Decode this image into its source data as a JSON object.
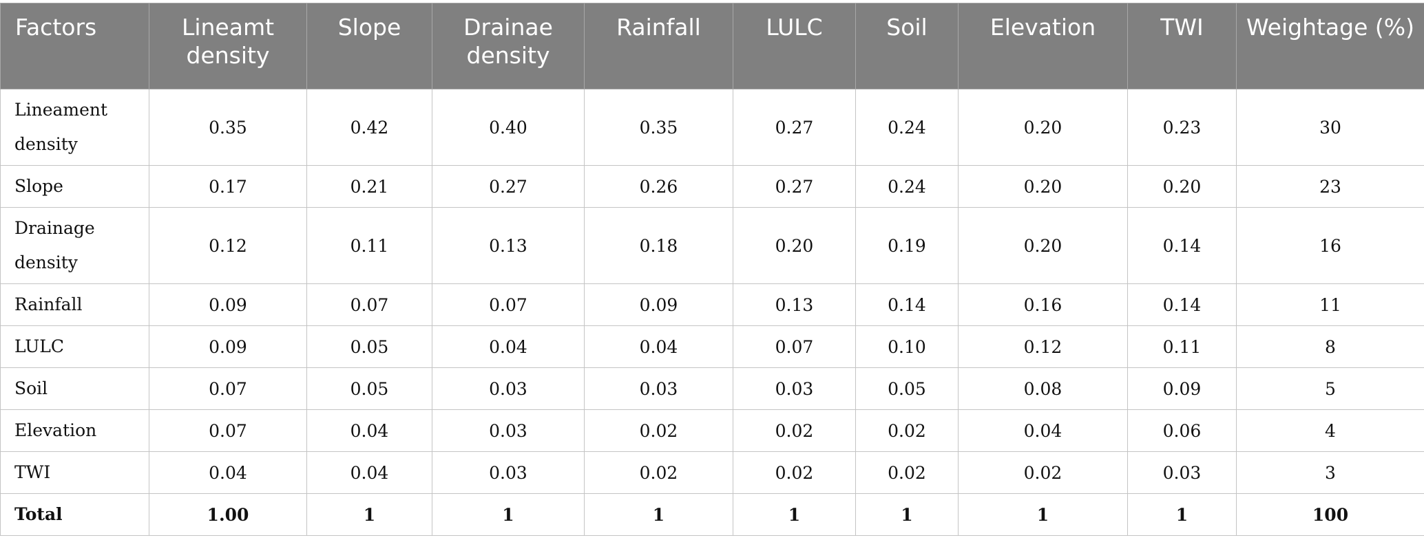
{
  "table": {
    "headers": [
      "Factors",
      "Lineamt density",
      "Slope",
      "Drainae density",
      "Rainfall",
      "LULC",
      "Soil",
      "Elevation",
      "TWI",
      "Weightage (%)"
    ],
    "rows": [
      {
        "label": "Lineament density",
        "values": [
          "0.35",
          "0.42",
          "0.40",
          "0.35",
          "0.27",
          "0.24",
          "0.20",
          "0.23",
          "30"
        ]
      },
      {
        "label": "Slope",
        "values": [
          "0.17",
          "0.21",
          "0.27",
          "0.26",
          "0.27",
          "0.24",
          "0.20",
          "0.20",
          "23"
        ]
      },
      {
        "label": "Drainage density",
        "values": [
          "0.12",
          "0.11",
          "0.13",
          "0.18",
          "0.20",
          "0.19",
          "0.20",
          "0.14",
          "16"
        ]
      },
      {
        "label": "Rainfall",
        "values": [
          "0.09",
          "0.07",
          "0.07",
          "0.09",
          "0.13",
          "0.14",
          "0.16",
          "0.14",
          "11"
        ]
      },
      {
        "label": "LULC",
        "values": [
          "0.09",
          "0.05",
          "0.04",
          "0.04",
          "0.07",
          "0.10",
          "0.12",
          "0.11",
          "8"
        ]
      },
      {
        "label": "Soil",
        "values": [
          "0.07",
          "0.05",
          "0.03",
          "0.03",
          "0.03",
          "0.05",
          "0.08",
          "0.09",
          "5"
        ]
      },
      {
        "label": "Elevation",
        "values": [
          "0.07",
          "0.04",
          "0.03",
          "0.02",
          "0.02",
          "0.02",
          "0.04",
          "0.06",
          "4"
        ]
      },
      {
        "label": "TWI",
        "values": [
          "0.04",
          "0.04",
          "0.03",
          "0.02",
          "0.02",
          "0.02",
          "0.02",
          "0.03",
          "3"
        ]
      },
      {
        "label": "Total",
        "values": [
          "1.00",
          "1",
          "1",
          "1",
          "1",
          "1",
          "1",
          "1",
          "100"
        ]
      }
    ]
  },
  "colors": {
    "header_bg": "#808080",
    "header_text": "#ffffff",
    "grid_line": "#c4c4c4"
  }
}
